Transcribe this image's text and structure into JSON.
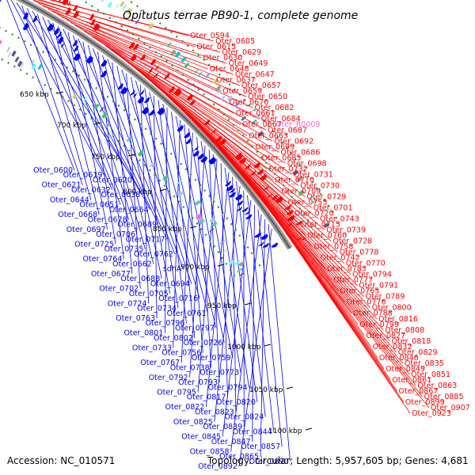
{
  "title": "Opitutus terrae PB90-1, complete genome",
  "footer": {
    "accession": "Accession: NC_010571",
    "topology": "Topology: circular; Length: 5,957,605 bp; Genes: 4,681"
  },
  "colors": {
    "forward": "#ff0000",
    "reverse": "#0000ff",
    "rna": "#ff66cc",
    "backbone": "#777777",
    "dotted_ring": "#2e8b2e"
  },
  "ticks": [
    "650 kbp",
    "700 kbp",
    "750 kbp",
    "800 kbp",
    "850 kbp",
    "900 kbp",
    "950 kbp",
    "1000 kbp",
    "1050 kbp",
    "1100 kbp"
  ],
  "labels_left": [
    "Oter_0600",
    "Oter_0619",
    "Oter_0620",
    "Oter_0621",
    "Oter_0632",
    "Oter_0638",
    "Oter_0644",
    "Oter_0651",
    "Oter_0664",
    "Oter_0668",
    "Oter_0678",
    "Oter_0689",
    "Oter_0697",
    "Oter_0706",
    "Oter_0717",
    "Oter_0725",
    "Oter_0735",
    "Oter_0762",
    "Oter_0764",
    "Oter_0662",
    "sdhA",
    "Oter_0677",
    "Oter_0688",
    "Oter_0694",
    "Oter_0702",
    "Oter_0705",
    "Oter_0716",
    "Oter_0724",
    "Oter_0734",
    "Oter_0761",
    "Oter_0763",
    "Oter_0796",
    "Oter_0797",
    "Oter_0801",
    "Oter_0802",
    "Oter_0726",
    "Oter_0733",
    "Oter_0756",
    "Oter_0759",
    "Oter_0767",
    "Oter_0738",
    "Oter_0773",
    "Oter_0792",
    "Oter_0793",
    "Oter_0794",
    "Oter_0795",
    "Oter_0817",
    "Oter_0820",
    "Oter_0822",
    "Oter_0823",
    "Oter_0824",
    "Oter_0825",
    "Oter_0839",
    "Oter_0844",
    "Oter_0845",
    "Oter_0847",
    "Oter_0857",
    "Oter_0858",
    "Oter_0865",
    "Oter_0890",
    "Oter_0892"
  ],
  "labels_right": [
    "Oter_0594",
    "Oter_0605",
    "Oter_0615",
    "Oter_0629",
    "Oter_0630",
    "Oter_0649",
    "Oter_0648",
    "Oter_0647",
    "Oter_0637",
    "Oter_0657",
    "Oter_0659",
    "Oter_0650",
    "Oter_0676",
    "Oter_0682",
    "Oter_0661",
    "Oter_0684",
    "Oter_0667",
    "Oter_0687",
    "Oter_0663",
    "Oter_0692",
    "Oter_0699",
    "Oter_0686",
    "Oter_0685",
    "Oter_0698",
    "Oter_0732",
    "Oter_0731",
    "Oter_0710",
    "Oter_0730",
    "Oter_0709",
    "Oter_0729",
    "Oter_0755",
    "Oter_0701",
    "Oter_0720",
    "Oter_0743",
    "Oter_0715",
    "Oter_0739",
    "Oter_0760",
    "Oter_0728",
    "Oter_0758",
    "Oter_0778",
    "Oter_0742",
    "Oter_0770",
    "Oter_0783",
    "Oter_0794",
    "Oter_0777",
    "Oter_0791",
    "Oter_0765",
    "Oter_0789",
    "Oter_0776",
    "Oter_0800",
    "Oter_0788",
    "Oter_0816",
    "Oter_0799",
    "Oter_0808",
    "Oter_0827",
    "Oter_0818",
    "Oter_0832",
    "Oter_0829",
    "Oter_0846",
    "Oter_0835",
    "Oter_0849",
    "Oter_0851",
    "Oter_0861",
    "Oter_0863",
    "Oter_0867",
    "Oter_0885",
    "Oter_0899",
    "Oter_0907",
    "Oter_0923"
  ],
  "labels_rna": [
    "Oter_R0009"
  ]
}
